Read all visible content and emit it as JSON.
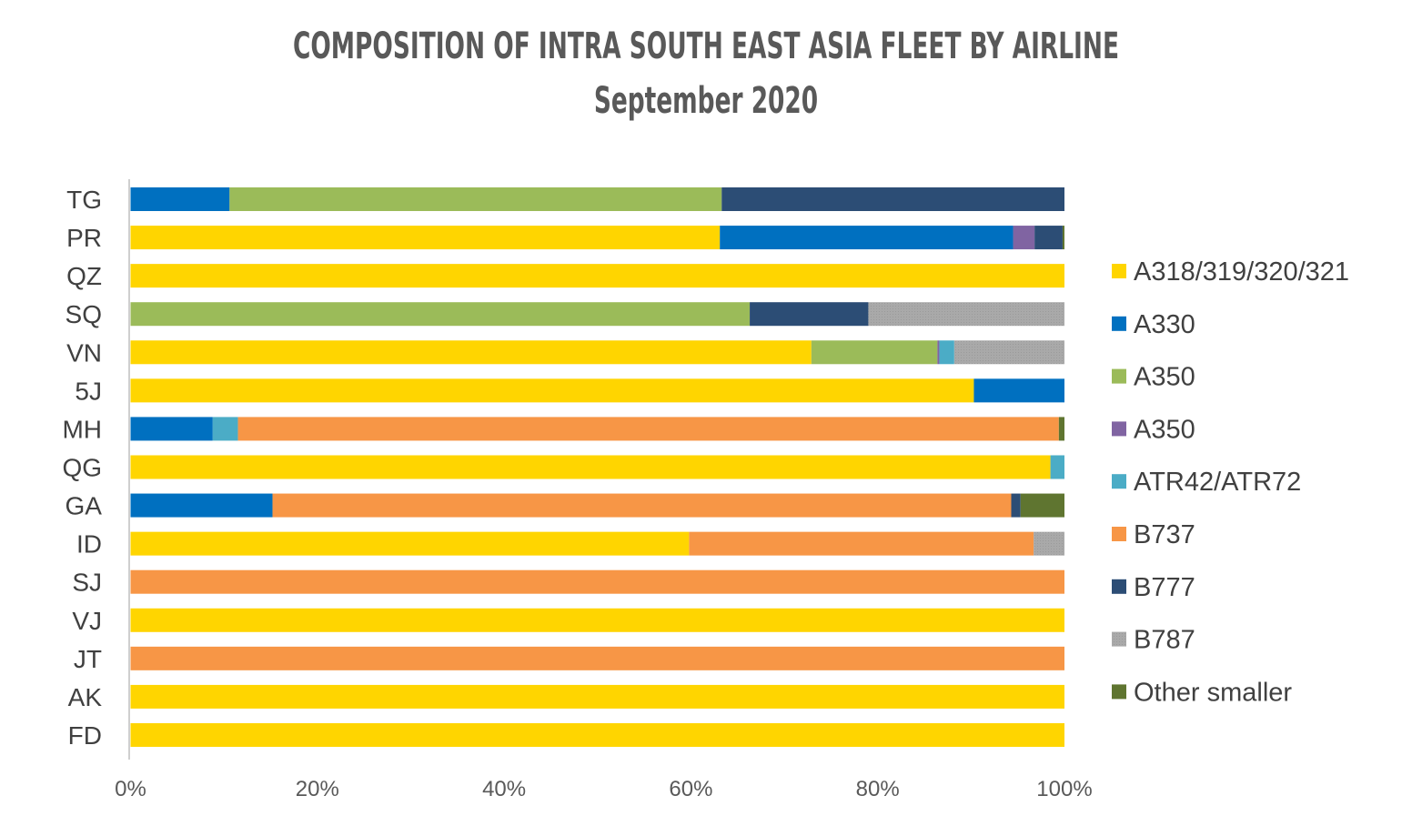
{
  "chart_data": {
    "type": "bar",
    "orientation": "horizontal",
    "stacked": "percent",
    "title": "COMPOSITION OF INTRA SOUTH EAST ASIA FLEET BY AIRLINE",
    "subtitle": "September 2020",
    "xlabel": "",
    "ylabel": "",
    "xlim": [
      0,
      100
    ],
    "x_ticks": [
      "0%",
      "20%",
      "40%",
      "60%",
      "80%",
      "100%"
    ],
    "grid": false,
    "legend_position": "right",
    "categories": [
      "TG",
      "PR",
      "QZ",
      "SQ",
      "VN",
      "5J",
      "MH",
      "QG",
      "GA",
      "ID",
      "SJ",
      "VJ",
      "JT",
      "AK",
      "FD"
    ],
    "series": [
      {
        "name": "A318/319/320/321",
        "color": "#FFD500",
        "pattern": false,
        "values": [
          0,
          63.1,
          100,
          0,
          72.9,
          90.3,
          0,
          98.5,
          0,
          59.8,
          0,
          100,
          0,
          100,
          100
        ]
      },
      {
        "name": "A330",
        "color": "#0070C0",
        "pattern": false,
        "values": [
          10.6,
          31.4,
          0,
          0,
          0,
          9.7,
          8.8,
          0,
          15.2,
          0,
          0,
          0,
          0,
          0,
          0
        ]
      },
      {
        "name": "A350",
        "color": "#9BBB59",
        "pattern": false,
        "values": [
          52.7,
          0,
          0,
          66.3,
          13.5,
          0,
          0,
          0,
          0,
          0,
          0,
          0,
          0,
          0,
          0
        ]
      },
      {
        "name": "A350",
        "color": "#8064A2",
        "pattern": false,
        "values": [
          0,
          2.3,
          0,
          0,
          0.2,
          0,
          0,
          0,
          0,
          0,
          0,
          0,
          0,
          0,
          0
        ]
      },
      {
        "name": "ATR42/ATR72",
        "color": "#4BACC6",
        "pattern": false,
        "values": [
          0,
          0,
          0,
          0,
          1.6,
          0,
          2.7,
          1.5,
          0,
          0,
          0,
          0,
          0,
          0,
          0
        ]
      },
      {
        "name": "B737",
        "color": "#F79646",
        "pattern": false,
        "values": [
          0,
          0,
          0,
          0,
          0,
          0,
          87.9,
          0,
          79.1,
          36.9,
          100,
          0,
          100,
          0,
          0
        ]
      },
      {
        "name": "B777",
        "color": "#2C4D75",
        "pattern": false,
        "values": [
          36.7,
          3.0,
          0,
          12.7,
          0,
          0,
          0,
          0,
          1.0,
          0,
          0,
          0,
          0,
          0,
          0
        ]
      },
      {
        "name": "B787",
        "color": "#A5A5A5",
        "pattern": true,
        "values": [
          0,
          0,
          0,
          21.0,
          11.8,
          0,
          0,
          0,
          0,
          3.3,
          0,
          0,
          0,
          0,
          0
        ]
      },
      {
        "name": "Other smaller",
        "color": "#5F7530",
        "pattern": false,
        "values": [
          0,
          0.2,
          0,
          0,
          0,
          0,
          0.6,
          0,
          4.7,
          0,
          0,
          0,
          0,
          0,
          0
        ]
      }
    ]
  }
}
